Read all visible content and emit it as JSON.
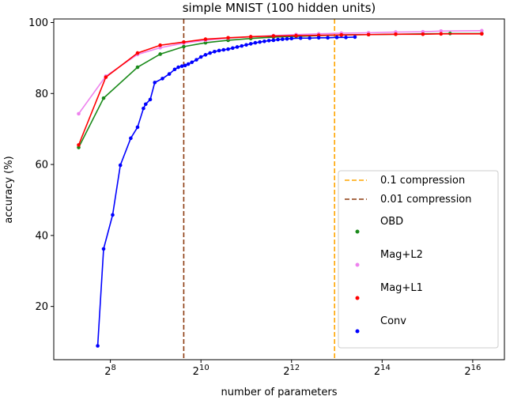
{
  "chart_data": {
    "type": "line",
    "title": "simple MNIST (100 hidden units)",
    "xlabel": "number of parameters",
    "ylabel": "accuracy (%)",
    "x_scale": "log2",
    "xlim_log2": [
      6.75,
      16.7
    ],
    "ylim": [
      5,
      101
    ],
    "x_ticks": [
      {
        "exp": 8,
        "base": "2",
        "sup": "8"
      },
      {
        "exp": 10,
        "base": "2",
        "sup": "10"
      },
      {
        "exp": 12,
        "base": "2",
        "sup": "12"
      },
      {
        "exp": 14,
        "base": "2",
        "sup": "14"
      },
      {
        "exp": 16,
        "base": "2",
        "sup": "16"
      }
    ],
    "y_ticks": [
      {
        "value": 20,
        "label": "20"
      },
      {
        "value": 40,
        "label": "40"
      },
      {
        "value": 60,
        "label": "60"
      },
      {
        "value": 80,
        "label": "80"
      },
      {
        "value": 100,
        "label": "100"
      }
    ],
    "grid": false,
    "legend_position": "lower-right",
    "vlines": [
      {
        "name": "0.1 compression",
        "x_log2": 12.95,
        "color": "#ffa500",
        "dash": "dashed"
      },
      {
        "name": "0.01 compression",
        "x_log2": 9.62,
        "color": "#8b3a0f",
        "dash": "dashed"
      }
    ],
    "series": [
      {
        "name": "OBD",
        "color": "#1a8a1a",
        "x_log2": [
          7.3,
          7.85,
          8.6,
          9.1,
          9.62,
          10.1,
          10.6,
          11.1,
          11.6,
          12.1,
          12.6,
          13.1,
          13.7,
          14.3,
          14.9,
          15.5,
          16.2
        ],
        "values": [
          64.8,
          78.7,
          87.4,
          91.1,
          93.2,
          94.3,
          95.0,
          95.5,
          95.9,
          96.1,
          96.3,
          96.5,
          96.6,
          96.7,
          96.8,
          96.9,
          96.9
        ]
      },
      {
        "name": "Mag+L2",
        "color": "#ee82ee",
        "x_log2": [
          7.3,
          7.9,
          8.6,
          9.1,
          9.62,
          10.1,
          10.6,
          11.1,
          11.6,
          12.1,
          12.6,
          13.1,
          13.7,
          14.3,
          14.9,
          15.3,
          16.2
        ],
        "values": [
          74.3,
          84.9,
          91.0,
          92.9,
          94.2,
          95.0,
          95.6,
          96.0,
          96.3,
          96.6,
          96.8,
          97.0,
          97.1,
          97.3,
          97.4,
          97.6,
          97.7
        ]
      },
      {
        "name": "Mag+L1",
        "color": "#ff0000",
        "x_log2": [
          7.3,
          7.9,
          8.6,
          9.1,
          9.62,
          10.1,
          10.6,
          11.1,
          11.6,
          12.1,
          12.6,
          13.1,
          13.7,
          14.3,
          14.9,
          15.3,
          16.2
        ],
        "values": [
          65.5,
          84.6,
          91.4,
          93.6,
          94.5,
          95.3,
          95.7,
          96.0,
          96.2,
          96.3,
          96.4,
          96.5,
          96.6,
          96.7,
          96.7,
          96.8,
          96.8
        ]
      },
      {
        "name": "Conv",
        "color": "#0000ff",
        "x_log2": [
          7.72,
          7.85,
          8.05,
          8.22,
          8.45,
          8.6,
          8.73,
          8.78,
          8.88,
          8.98,
          9.15,
          9.3,
          9.42,
          9.5,
          9.58,
          9.65,
          9.72,
          9.8,
          9.9,
          10.0,
          10.1,
          10.2,
          10.3,
          10.4,
          10.5,
          10.6,
          10.7,
          10.8,
          10.9,
          11.0,
          11.1,
          11.2,
          11.3,
          11.4,
          11.5,
          11.6,
          11.7,
          11.8,
          11.9,
          12.0,
          12.2,
          12.4,
          12.6,
          12.8,
          13.0,
          13.2,
          13.4
        ],
        "values": [
          8.9,
          36.2,
          45.8,
          59.8,
          67.4,
          70.5,
          75.8,
          77.0,
          78.3,
          83.1,
          84.2,
          85.5,
          86.8,
          87.4,
          87.7,
          87.9,
          88.3,
          88.8,
          89.5,
          90.3,
          90.9,
          91.4,
          91.8,
          92.1,
          92.3,
          92.5,
          92.8,
          93.1,
          93.4,
          93.7,
          94.0,
          94.3,
          94.5,
          94.7,
          94.9,
          95.0,
          95.2,
          95.3,
          95.4,
          95.5,
          95.6,
          95.6,
          95.7,
          95.7,
          95.8,
          95.8,
          95.9
        ]
      }
    ]
  }
}
